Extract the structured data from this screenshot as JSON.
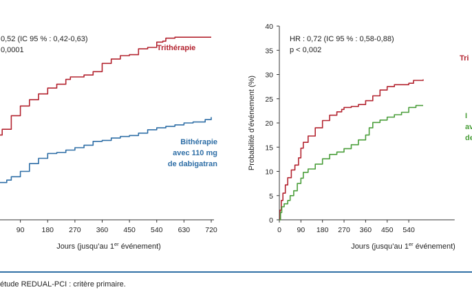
{
  "caption": "étude REDUAL-PCI : critère primaire.",
  "colors": {
    "red": "#b3232f",
    "blue": "#2e6ea6",
    "green": "#4a9e3a",
    "axis": "#333333",
    "rule": "#2f6fa5"
  },
  "chart_data": [
    {
      "type": "line",
      "panel": "left",
      "title": "",
      "xlabel": "Jours (jusqu’au 1er événement)",
      "ylabel": "",
      "xticks": [
        90,
        180,
        270,
        360,
        450,
        540,
        630,
        720
      ],
      "xtick_labels": [
        "90",
        "180",
        "270",
        "360",
        "450",
        "540",
        "630",
        "720"
      ],
      "xlim": [
        0,
        720
      ],
      "ylim": [
        0,
        40
      ],
      "annotation": [
        "0,52 (IC 95 % : 0,42-0,63)",
        "0,0001"
      ],
      "series": [
        {
          "name": "Trithérapie",
          "label_lines": [
            "Trithérapie"
          ],
          "color": "#b3232f",
          "x": [
            0,
            5,
            15,
            30,
            60,
            90,
            120,
            150,
            180,
            210,
            240,
            255,
            270,
            300,
            330,
            360,
            390,
            420,
            450,
            480,
            500,
            510,
            540,
            560,
            570,
            600,
            630,
            660,
            700,
            720
          ],
          "y": [
            15.5,
            16.5,
            17.5,
            18.7,
            21.5,
            23.5,
            24.8,
            26.0,
            27.2,
            28.0,
            29.0,
            29.5,
            29.5,
            29.9,
            30.6,
            32.3,
            33.2,
            33.9,
            34.1,
            35.3,
            35.3,
            35.6,
            36.7,
            36.9,
            37.5,
            37.7,
            37.7,
            37.7,
            37.7,
            37.7
          ]
        },
        {
          "name": "Bithérapie avec 110 mg de dabigatran",
          "label_lines": [
            "Bithérapie",
            "avec 110 mg",
            "de dabigatran"
          ],
          "color": "#2e6ea6",
          "x": [
            0,
            15,
            20,
            45,
            60,
            90,
            120,
            150,
            180,
            210,
            240,
            270,
            300,
            330,
            360,
            390,
            420,
            450,
            480,
            510,
            540,
            570,
            600,
            630,
            660,
            700,
            720
          ],
          "y": [
            7.0,
            7.0,
            7.7,
            8.2,
            8.9,
            10.0,
            11.6,
            12.7,
            13.7,
            13.9,
            14.4,
            14.9,
            15.4,
            16.2,
            16.4,
            16.9,
            17.2,
            17.4,
            17.9,
            18.6,
            19.0,
            19.3,
            19.6,
            20.0,
            20.2,
            20.7,
            21.2
          ]
        }
      ]
    },
    {
      "type": "line",
      "panel": "right",
      "title": "",
      "xlabel": "Jours (jusqu’au 1er événement)",
      "ylabel": "Probabilité d’événement (%)",
      "xticks": [
        0,
        90,
        180,
        270,
        360,
        450,
        540
      ],
      "xtick_labels": [
        "0",
        "90",
        "180",
        "270",
        "360",
        "450",
        "540"
      ],
      "yticks": [
        0,
        5,
        10,
        15,
        20,
        25,
        30,
        35,
        40
      ],
      "ytick_labels": [
        "0",
        "5",
        "10",
        "15",
        "20",
        "25",
        "30",
        "35",
        "40"
      ],
      "xlim": [
        0,
        720
      ],
      "ylim": [
        0,
        40
      ],
      "annotation": [
        "HR : 0,72 (IC 95 % : 0,58-0,88)",
        "p < 0,002"
      ],
      "series": [
        {
          "name": "Trithérapie",
          "label_lines": [
            "Tri"
          ],
          "color": "#b3232f",
          "x": [
            0,
            3,
            8,
            15,
            25,
            35,
            50,
            65,
            80,
            90,
            100,
            120,
            150,
            180,
            210,
            240,
            260,
            270,
            300,
            330,
            360,
            390,
            420,
            450,
            480,
            540,
            560,
            600
          ],
          "y": [
            0,
            2.0,
            4.0,
            5.5,
            7.2,
            8.7,
            10.3,
            11.3,
            12.8,
            14.8,
            16.0,
            17.3,
            19.0,
            20.5,
            21.6,
            22.3,
            22.8,
            23.2,
            23.4,
            23.8,
            24.6,
            25.6,
            26.8,
            27.5,
            27.9,
            28.2,
            28.8,
            29.0
          ]
        },
        {
          "name": "",
          "label_lines": [
            "I",
            "av",
            "de"
          ],
          "color": "#4a9e3a",
          "x": [
            0,
            5,
            10,
            20,
            35,
            45,
            60,
            75,
            90,
            100,
            120,
            150,
            180,
            210,
            240,
            270,
            300,
            330,
            360,
            375,
            390,
            420,
            450,
            480,
            510,
            540,
            570,
            600
          ],
          "y": [
            0,
            1.5,
            2.7,
            3.3,
            4.0,
            5.0,
            6.0,
            7.5,
            8.6,
            9.8,
            10.5,
            11.5,
            12.6,
            13.5,
            14.0,
            14.7,
            15.5,
            16.5,
            17.5,
            19.0,
            20.1,
            20.6,
            21.2,
            21.7,
            22.2,
            23.2,
            23.6,
            23.6
          ]
        }
      ]
    }
  ]
}
